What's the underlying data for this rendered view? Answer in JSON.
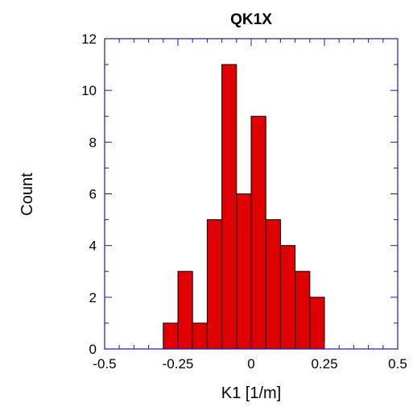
{
  "chart_data": {
    "type": "bar",
    "title": "QK1X",
    "xlabel": "K1 [1/m]",
    "ylabel": "Count",
    "xlim": [
      -0.5,
      0.5
    ],
    "ylim": [
      0,
      12
    ],
    "x_ticks": [
      -0.5,
      -0.25,
      0,
      0.25,
      0.5
    ],
    "x_tick_labels": [
      "-0.5",
      "-0.25",
      "0",
      "0.25",
      "0.5"
    ],
    "y_ticks": [
      0,
      2,
      4,
      6,
      8,
      10,
      12
    ],
    "y_tick_labels": [
      "0",
      "2",
      "4",
      "6",
      "8",
      "10",
      "12"
    ],
    "bin_edges": [
      -0.3,
      -0.25,
      -0.2,
      -0.15,
      -0.1,
      -0.05,
      0,
      0.05,
      0.1,
      0.15,
      0.2,
      0.25
    ],
    "values": [
      1,
      3,
      1,
      5,
      11,
      6,
      9,
      5,
      4,
      3,
      2
    ],
    "grid": false,
    "bar_color": "#e00000",
    "axis_color": "#1a1aa0"
  }
}
